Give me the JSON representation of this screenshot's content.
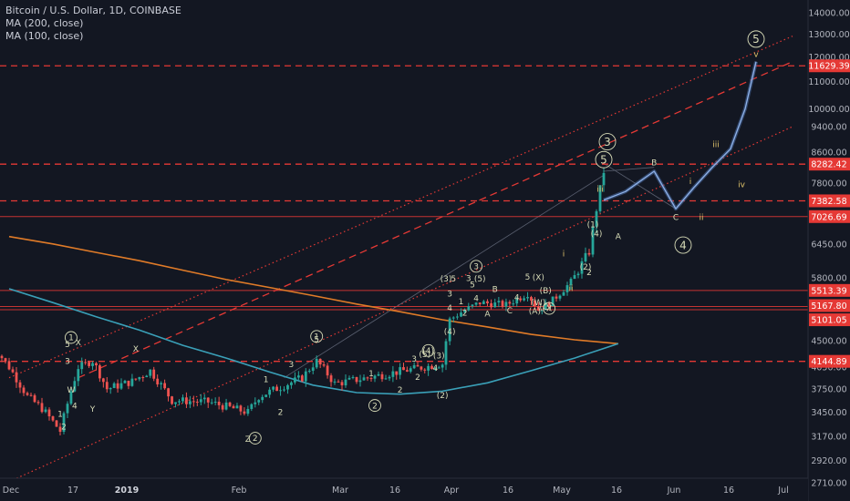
{
  "header": {
    "title": "Bitcoin / U.S. Dollar, 1D, COINBASE",
    "indicators": [
      "MA (200, close)",
      "MA (100, close)"
    ]
  },
  "colors": {
    "background": "#131722",
    "up": "#26a69a",
    "down": "#ef5350",
    "ma200": "#e07b28",
    "ma100": "#3aa0b8",
    "hline": "#e53935",
    "projection": "#4a6ea8",
    "wave_label": "#d8dcb8",
    "axis_text": "#b2b5be",
    "price_box": "#e53935"
  },
  "chart_data": {
    "type": "candlestick",
    "title": "Bitcoin / U.S. Dollar, 1D, COINBASE",
    "xlabel": "",
    "ylabel": "",
    "x_ticks": [
      "Dec",
      "17",
      "2019",
      "Feb",
      "Mar",
      "16",
      "Apr",
      "16",
      "May",
      "16",
      "Jun",
      "16",
      "Jul"
    ],
    "y_ticks": [
      "14000.00",
      "13000.00",
      "12000.00",
      "11000.00",
      "10000.00",
      "9400.00",
      "8600.00",
      "7800.00",
      "6450.00",
      "5800.00",
      "4500.00",
      "4050.00",
      "3750.00",
      "3450.00",
      "3170.00",
      "2920.00",
      "2710.00"
    ],
    "ylim": [
      2650,
      14600
    ],
    "grid": false,
    "price_levels": [
      "11629.39",
      "8282.42",
      "7382.58",
      "7026.69",
      "5513.39",
      "5167.80",
      "5101.05",
      "4144.89"
    ],
    "series": [
      {
        "name": "MA (200, close)",
        "from": "2018-12-01",
        "to": "2019-05-18",
        "values": [
          6600,
          6450,
          6280,
          6120,
          5940,
          5760,
          5580,
          5400,
          5220,
          5060,
          4900,
          4760,
          4620,
          4520,
          4450
        ]
      },
      {
        "name": "MA (100, close)",
        "from": "2018-12-01",
        "to": "2019-05-18",
        "values": [
          5550,
          5250,
          4960,
          4700,
          4420,
          4200,
          3980,
          3800,
          3700,
          3680,
          3720,
          3830,
          4000,
          4200,
          4450
        ]
      }
    ],
    "price_path": [
      [
        "2018-12-01",
        4050
      ],
      [
        "2018-12-06",
        3650
      ],
      [
        "2018-12-10",
        3500
      ],
      [
        "2018-12-15",
        3230
      ],
      [
        "2018-12-20",
        4050
      ],
      [
        "2018-12-24",
        4150
      ],
      [
        "2018-12-28",
        3750
      ],
      [
        "2019-01-04",
        3850
      ],
      [
        "2019-01-09",
        4000
      ],
      [
        "2019-01-15",
        3600
      ],
      [
        "2019-01-25",
        3580
      ],
      [
        "2019-02-05",
        3450
      ],
      [
        "2019-02-08",
        3650
      ],
      [
        "2019-02-20",
        3900
      ],
      [
        "2019-02-24",
        4150
      ],
      [
        "2019-03-01",
        3820
      ],
      [
        "2019-03-10",
        3900
      ],
      [
        "2019-03-20",
        4000
      ],
      [
        "2019-03-31",
        4100
      ],
      [
        "2019-04-02",
        4900
      ],
      [
        "2019-04-05",
        5050
      ],
      [
        "2019-04-10",
        5250
      ],
      [
        "2019-04-17",
        5200
      ],
      [
        "2019-04-23",
        5450
      ],
      [
        "2019-04-26",
        5100
      ],
      [
        "2019-04-30",
        5300
      ],
      [
        "2019-05-05",
        5700
      ],
      [
        "2019-05-10",
        6300
      ],
      [
        "2019-05-14",
        8100
      ]
    ],
    "projection_path": [
      [
        "2019-05-14",
        7400
      ],
      [
        "2019-05-20",
        7600
      ],
      [
        "2019-05-28",
        8100
      ],
      [
        "2019-06-03",
        7200
      ],
      [
        "2019-06-08",
        7700
      ],
      [
        "2019-06-13",
        8200
      ],
      [
        "2019-06-18",
        8700
      ],
      [
        "2019-06-22",
        10000
      ],
      [
        "2019-06-25",
        11800
      ]
    ],
    "wave_labels": [
      {
        "text": "5",
        "date": "2019-05-14",
        "price": 8300,
        "circled": true
      },
      {
        "text": "3",
        "date": "2019-05-15",
        "price": 8800,
        "circled": true
      },
      {
        "text": "5",
        "date": "2019-06-25",
        "price": 12600,
        "circled": true
      },
      {
        "text": "v",
        "date": "2019-06-25",
        "price": 12000,
        "circled": false
      },
      {
        "text": "B",
        "date": "2019-05-28",
        "price": 8250,
        "circled": false
      },
      {
        "text": "iii",
        "date": "2019-06-14",
        "price": 8750,
        "circled": false
      },
      {
        "text": "iv",
        "date": "2019-06-21",
        "price": 7700,
        "circled": false
      },
      {
        "text": "i",
        "date": "2019-06-07",
        "price": 7780,
        "circled": false
      },
      {
        "text": "ii",
        "date": "2019-06-10",
        "price": 6950,
        "circled": false
      },
      {
        "text": "C",
        "date": "2019-06-03",
        "price": 6950,
        "circled": false
      },
      {
        "text": "4",
        "date": "2019-06-05",
        "price": 6350,
        "circled": true
      },
      {
        "text": "A",
        "date": "2019-05-18",
        "price": 6550,
        "circled": false
      },
      {
        "text": "i",
        "date": "2019-05-03",
        "price": 6200,
        "circled": false
      },
      {
        "text": "ii",
        "date": "2019-05-05",
        "price": 5500,
        "circled": false
      },
      {
        "text": "2",
        "date": "2019-05-10",
        "price": 5850,
        "circled": false
      },
      {
        "text": "(1)",
        "date": "2019-05-11",
        "price": 6800,
        "circled": false
      },
      {
        "text": "(2)",
        "date": "2019-05-09",
        "price": 5950,
        "circled": false
      },
      {
        "text": "(4)",
        "date": "2019-05-12",
        "price": 6600,
        "circled": false
      },
      {
        "text": "iii",
        "date": "2019-05-13",
        "price": 7600,
        "circled": false
      },
      {
        "text": "(X)",
        "date": "2019-04-26",
        "price": 5750,
        "circled": false
      },
      {
        "text": "(B)",
        "date": "2019-04-28",
        "price": 5450,
        "circled": false
      },
      {
        "text": "(W)",
        "date": "2019-04-26",
        "price": 5200,
        "circled": false
      },
      {
        "text": "(A)",
        "date": "2019-04-25",
        "price": 5020,
        "circled": false
      },
      {
        "text": "(C)",
        "date": "2019-04-28",
        "price": 5100,
        "circled": false
      },
      {
        "text": "X",
        "date": "2019-04-29",
        "price": 5070,
        "circled": true
      },
      {
        "text": "5",
        "date": "2019-04-23",
        "price": 5760,
        "circled": false
      },
      {
        "text": "4",
        "date": "2019-04-20",
        "price": 5300,
        "circled": false
      },
      {
        "text": "C",
        "date": "2019-04-18",
        "price": 5030,
        "circled": false
      },
      {
        "text": "B",
        "date": "2019-04-14",
        "price": 5480,
        "circled": false
      },
      {
        "text": "A",
        "date": "2019-04-12",
        "price": 4960,
        "circled": false
      },
      {
        "text": "3",
        "date": "2019-04-09",
        "price": 5960,
        "circled": true
      },
      {
        "text": "(5)",
        "date": "2019-04-10",
        "price": 5720,
        "circled": false
      },
      {
        "text": "5",
        "date": "2019-04-08",
        "price": 5580,
        "circled": false
      },
      {
        "text": "3",
        "date": "2019-04-07",
        "price": 5730,
        "circled": false
      },
      {
        "text": "4",
        "date": "2019-04-09",
        "price": 5280,
        "circled": false
      },
      {
        "text": "1",
        "date": "2019-04-05",
        "price": 5220,
        "circled": false
      },
      {
        "text": "2",
        "date": "2019-04-06",
        "price": 4980,
        "circled": false
      },
      {
        "text": "(3)",
        "date": "2019-04-01",
        "price": 5720,
        "circled": false
      },
      {
        "text": "5",
        "date": "2019-04-03",
        "price": 5720,
        "circled": false
      },
      {
        "text": "3",
        "date": "2019-04-02",
        "price": 5380,
        "circled": false
      },
      {
        "text": "4",
        "date": "2019-04-02",
        "price": 5080,
        "circled": false
      },
      {
        "text": "(4)",
        "date": "2019-04-02",
        "price": 4620,
        "circled": false
      },
      {
        "text": "(5)",
        "date": "2019-03-26",
        "price": 4220,
        "circled": false
      },
      {
        "text": "3",
        "date": "2019-03-23",
        "price": 4140,
        "circled": false
      },
      {
        "text": "(4)",
        "date": "2019-03-27",
        "price": 4280,
        "circled": true
      },
      {
        "text": "4",
        "date": "2019-03-29",
        "price": 4000,
        "circled": false
      },
      {
        "text": "(3)",
        "date": "2019-03-30",
        "price": 4190,
        "circled": false
      },
      {
        "text": "2",
        "date": "2019-03-24",
        "price": 3870,
        "circled": false
      },
      {
        "text": "1",
        "date": "2019-03-11",
        "price": 3920,
        "circled": false
      },
      {
        "text": "(2)",
        "date": "2019-03-31",
        "price": 3630,
        "circled": false
      },
      {
        "text": "2",
        "date": "2019-03-19",
        "price": 3700,
        "circled": false
      },
      {
        "text": "2",
        "date": "2019-03-12",
        "price": 3500,
        "circled": true
      },
      {
        "text": "5",
        "date": "2019-02-24",
        "price": 4480,
        "circled": false
      },
      {
        "text": "1",
        "date": "2019-02-24",
        "price": 4530,
        "circled": true
      },
      {
        "text": "3",
        "date": "2019-02-17",
        "price": 4050,
        "circled": false
      },
      {
        "text": "1",
        "date": "2019-02-10",
        "price": 3840,
        "circled": false
      },
      {
        "text": "2",
        "date": "2019-02-14",
        "price": 3420,
        "circled": false
      },
      {
        "text": "2",
        "date": "2019-02-07",
        "price": 3120,
        "circled": true
      },
      {
        "text": "Z",
        "date": "2019-02-05",
        "price": 3110,
        "circled": false
      },
      {
        "text": "X",
        "date": "2019-01-05",
        "price": 4310,
        "circled": false
      },
      {
        "text": "Y",
        "date": "2018-12-24",
        "price": 3460,
        "circled": false
      },
      {
        "text": "X",
        "date": "2018-12-20",
        "price": 4420,
        "circled": false
      },
      {
        "text": "1",
        "date": "2018-12-18",
        "price": 4510,
        "circled": true
      },
      {
        "text": "5",
        "date": "2018-12-17",
        "price": 4390,
        "circled": false
      },
      {
        "text": "3",
        "date": "2018-12-17",
        "price": 4100,
        "circled": false
      },
      {
        "text": "W",
        "date": "2018-12-18",
        "price": 3700,
        "circled": false
      },
      {
        "text": "4",
        "date": "2018-12-19",
        "price": 3500,
        "circled": false
      },
      {
        "text": "1",
        "date": "2018-12-15",
        "price": 3400,
        "circled": false
      },
      {
        "text": "2",
        "date": "2018-12-16",
        "price": 3250,
        "circled": false
      }
    ]
  }
}
